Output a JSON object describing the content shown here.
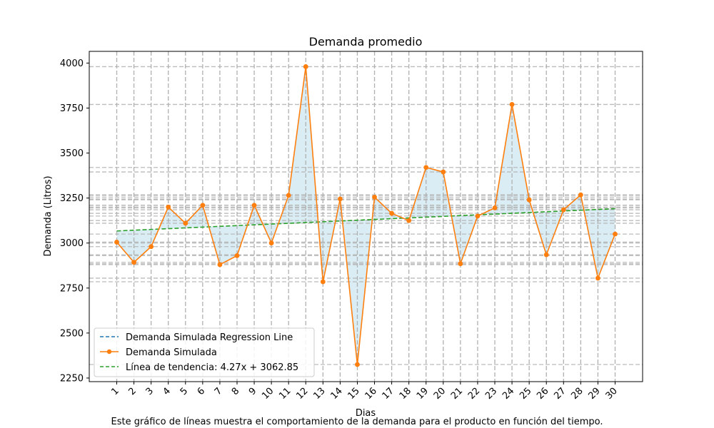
{
  "chart_data": {
    "type": "line",
    "title": "Demanda promedio",
    "xlabel": "Dias",
    "ylabel": "Demanda (Litros)",
    "caption": "Este gráfico de líneas muestra el comportamiento de la demanda para el producto en función del tiempo.",
    "x": [
      1,
      2,
      3,
      4,
      5,
      6,
      7,
      8,
      9,
      10,
      11,
      12,
      13,
      14,
      15,
      16,
      17,
      18,
      19,
      20,
      21,
      22,
      23,
      24,
      25,
      26,
      27,
      28,
      29,
      30
    ],
    "xticks": [
      "1",
      "2",
      "3",
      "4",
      "5",
      "6",
      "7",
      "8",
      "9",
      "10",
      "11",
      "12",
      "13",
      "14",
      "15",
      "16",
      "17",
      "18",
      "19",
      "20",
      "21",
      "22",
      "23",
      "24",
      "25",
      "26",
      "27",
      "28",
      "29",
      "30"
    ],
    "yticks": [
      2250,
      2500,
      2750,
      3000,
      3250,
      3500,
      3750,
      4000
    ],
    "xlim": [
      -0.6,
      31.6
    ],
    "ylim": [
      2230,
      4065
    ],
    "grid": true,
    "legend_position": "lower-left",
    "series": [
      {
        "name": "Demanda Simulada",
        "color": "#ff7f0e",
        "marker": "circle",
        "values": [
          3005,
          2893,
          2980,
          3200,
          3110,
          3210,
          2880,
          2930,
          3210,
          3000,
          3265,
          3980,
          2785,
          3245,
          2325,
          3255,
          3165,
          3125,
          3420,
          3395,
          2885,
          3150,
          3195,
          3770,
          3240,
          2935,
          3185,
          3268,
          2805,
          3050
        ]
      }
    ],
    "regression_line": {
      "name": "Demanda Simulada Regression Line",
      "color": "#1f77b4",
      "style": "dashed"
    },
    "trend_line": {
      "name": "Línea de tendencia: 4.27x + 3062.85",
      "color": "#2ca02c",
      "style": "dashed",
      "slope": 4.27,
      "intercept": 3062.85
    },
    "fill_color": "#add8e6"
  }
}
